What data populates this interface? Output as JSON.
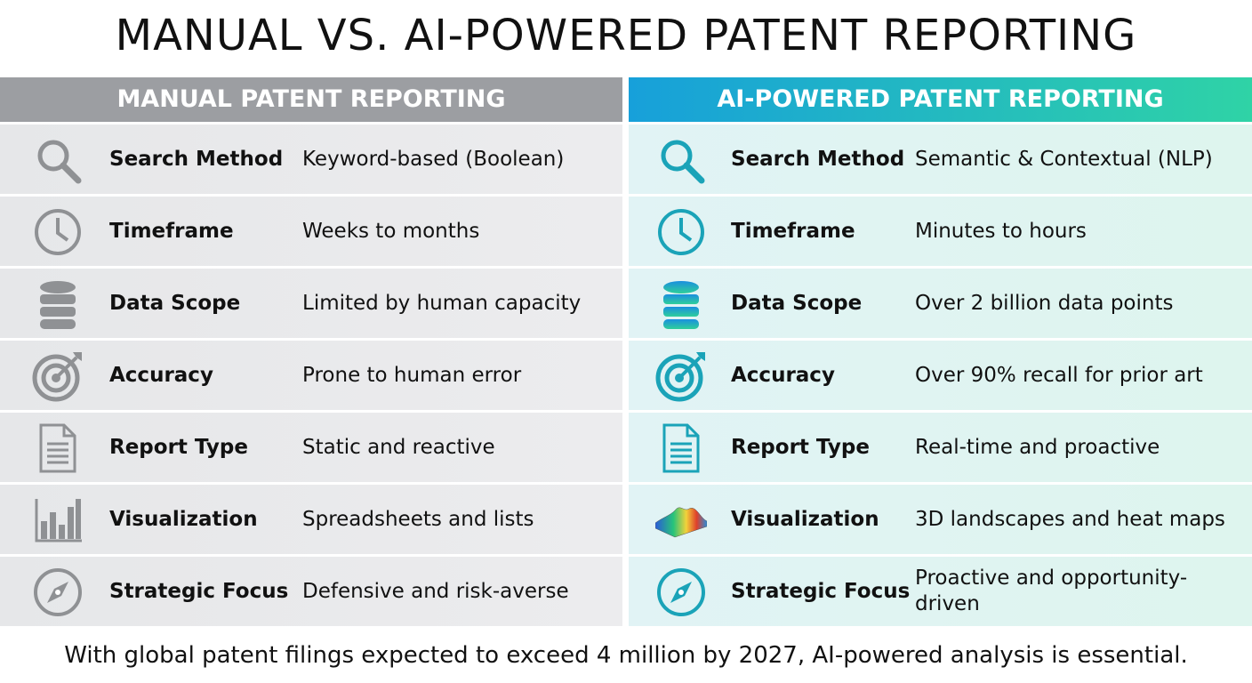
{
  "title": "MANUAL VS. AI-POWERED PATENT REPORTING",
  "columns": [
    {
      "header": "MANUAL PATENT REPORTING",
      "rows": [
        {
          "label": "Search Method",
          "value": "Keyword-based (Boolean)"
        },
        {
          "label": "Timeframe",
          "value": "Weeks to months"
        },
        {
          "label": "Data Scope",
          "value": "Limited by human capacity"
        },
        {
          "label": "Accuracy",
          "value": "Prone to human error"
        },
        {
          "label": "Report Type",
          "value": "Static and reactive"
        },
        {
          "label": "Visualization",
          "value": "Spreadsheets and lists"
        },
        {
          "label": "Strategic Focus",
          "value": "Defensive and risk-averse"
        }
      ]
    },
    {
      "header": "AI-POWERED PATENT REPORTING",
      "rows": [
        {
          "label": "Search Method",
          "value": "Semantic & Contextual (NLP)"
        },
        {
          "label": "Timeframe",
          "value": "Minutes to hours"
        },
        {
          "label": "Data Scope",
          "value": "Over 2 billion data points"
        },
        {
          "label": "Accuracy",
          "value": "Over 90% recall for prior art"
        },
        {
          "label": "Report Type",
          "value": "Real-time and proactive"
        },
        {
          "label": "Visualization",
          "value": "3D landscapes and heat maps"
        },
        {
          "label": "Strategic Focus",
          "value": "Proactive and opportunity-driven"
        }
      ]
    }
  ],
  "footer": "With global patent filings expected to exceed 4 million by 2027, AI-powered analysis is essential."
}
